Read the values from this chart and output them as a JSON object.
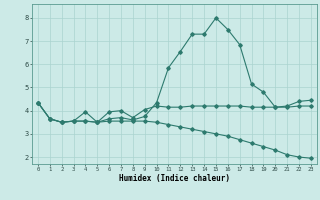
{
  "title": "",
  "xlabel": "Humidex (Indice chaleur)",
  "ylabel": "",
  "background_color": "#cceae7",
  "grid_color": "#aad4d0",
  "line_color": "#2d7a6e",
  "xlim": [
    -0.5,
    23.5
  ],
  "ylim": [
    1.7,
    8.6
  ],
  "yticks": [
    2,
    3,
    4,
    5,
    6,
    7,
    8
  ],
  "xticks": [
    0,
    1,
    2,
    3,
    4,
    5,
    6,
    7,
    8,
    9,
    10,
    11,
    12,
    13,
    14,
    15,
    16,
    17,
    18,
    19,
    20,
    21,
    22,
    23
  ],
  "series1_x": [
    0,
    1,
    2,
    3,
    4,
    5,
    6,
    7,
    8,
    9,
    10,
    11,
    12,
    13,
    14,
    15,
    16,
    17,
    18,
    19,
    20,
    21,
    22,
    23
  ],
  "series1_y": [
    4.35,
    3.65,
    3.5,
    3.55,
    3.55,
    3.5,
    3.65,
    3.7,
    3.6,
    3.75,
    4.35,
    5.85,
    6.55,
    7.3,
    7.3,
    8.0,
    7.5,
    6.85,
    5.15,
    4.8,
    4.15,
    4.2,
    4.4,
    4.45
  ],
  "series2_x": [
    0,
    1,
    2,
    3,
    4,
    5,
    6,
    7,
    8,
    9,
    10,
    11,
    12,
    13,
    14,
    15,
    16,
    17,
    18,
    19,
    20,
    21,
    22,
    23
  ],
  "series2_y": [
    4.35,
    3.65,
    3.5,
    3.55,
    3.95,
    3.5,
    3.95,
    4.0,
    3.7,
    4.05,
    4.2,
    4.15,
    4.15,
    4.2,
    4.2,
    4.2,
    4.2,
    4.2,
    4.15,
    4.15,
    4.15,
    4.15,
    4.2,
    4.2
  ],
  "series3_x": [
    0,
    1,
    2,
    3,
    4,
    5,
    6,
    7,
    8,
    9,
    10,
    11,
    12,
    13,
    14,
    15,
    16,
    17,
    18,
    19,
    20,
    21,
    22,
    23
  ],
  "series3_y": [
    4.35,
    3.65,
    3.5,
    3.55,
    3.55,
    3.5,
    3.55,
    3.55,
    3.55,
    3.55,
    3.5,
    3.4,
    3.3,
    3.2,
    3.1,
    3.0,
    2.9,
    2.75,
    2.6,
    2.45,
    2.3,
    2.1,
    2.0,
    1.95
  ]
}
